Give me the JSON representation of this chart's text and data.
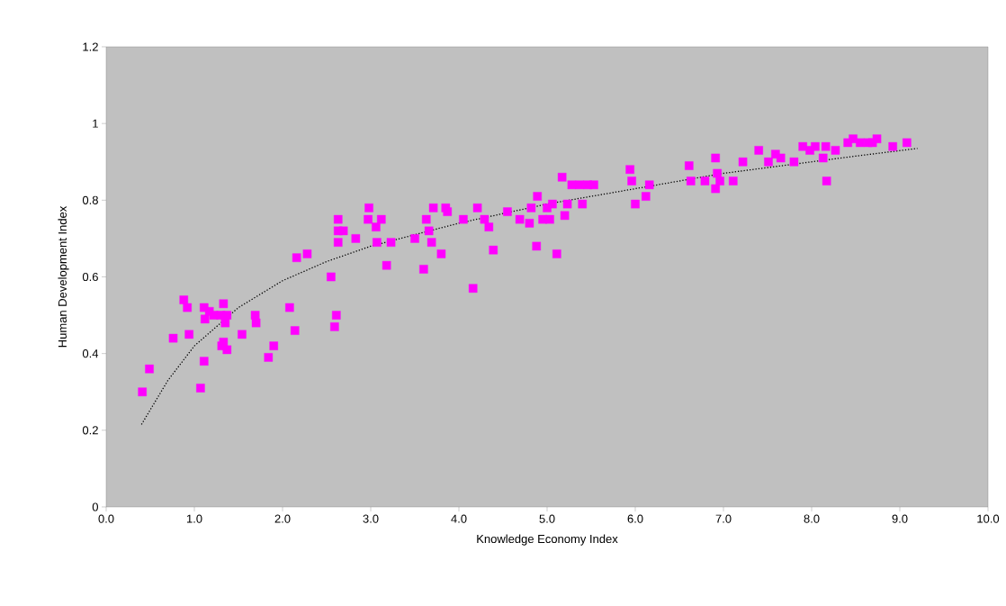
{
  "chart_data": {
    "type": "scatter",
    "xlabel": "Knowledge Economy Index",
    "ylabel": "Human Development Index",
    "xlim": [
      0,
      10
    ],
    "ylim": [
      0,
      1.2
    ],
    "xticks": [
      {
        "value": 0,
        "label": "0.0"
      },
      {
        "value": 1,
        "label": "1.0"
      },
      {
        "value": 2,
        "label": "2.0"
      },
      {
        "value": 3,
        "label": "3.0"
      },
      {
        "value": 4,
        "label": "4.0"
      },
      {
        "value": 5,
        "label": "5.0"
      },
      {
        "value": 6,
        "label": "6.0"
      },
      {
        "value": 7,
        "label": "7.0"
      },
      {
        "value": 8,
        "label": "8.0"
      },
      {
        "value": 9,
        "label": "9.0"
      },
      {
        "value": 10,
        "label": "10.0"
      }
    ],
    "yticks": [
      0,
      0.2,
      0.4,
      0.6,
      0.8,
      1,
      1.2
    ],
    "grid": false,
    "series": [
      {
        "marker": "square",
        "color": "#ff00ff",
        "x": [
          0.41,
          0.49,
          0.76,
          0.88,
          0.92,
          0.94,
          1.07,
          1.11,
          1.11,
          1.12,
          1.17,
          1.22,
          1.3,
          1.33,
          1.35,
          1.33,
          1.31,
          1.37,
          1.37,
          1.54,
          1.69,
          1.7,
          1.84,
          1.9,
          2.08,
          2.14,
          2.16,
          2.28,
          2.55,
          2.59,
          2.61,
          2.63,
          2.63,
          2.63,
          2.69,
          2.83,
          2.98,
          2.97,
          3.06,
          3.07,
          3.12,
          3.18,
          3.23,
          3.5,
          3.6,
          3.63,
          3.66,
          3.69,
          3.71,
          3.8,
          3.87,
          3.85,
          4.05,
          4.16,
          4.21,
          4.29,
          4.34,
          4.39,
          4.55,
          4.69,
          4.8,
          4.82,
          4.89,
          4.88,
          4.95,
          5.0,
          5.03,
          5.06,
          5.11,
          5.17,
          5.2,
          5.23,
          5.28,
          5.37,
          5.46,
          5.53,
          5.4,
          5.94,
          5.96,
          6.0,
          6.12,
          6.16,
          6.61,
          6.63,
          6.79,
          6.91,
          6.93,
          6.91,
          6.96,
          7.11,
          7.22,
          7.4,
          7.51,
          7.59,
          7.65,
          7.8,
          7.9,
          7.98,
          8.04,
          8.13,
          8.17,
          8.16,
          8.27,
          8.41,
          8.47,
          8.55,
          8.64,
          8.69,
          8.74,
          8.92,
          9.08
        ],
        "values": [
          0.3,
          0.36,
          0.44,
          0.54,
          0.52,
          0.45,
          0.31,
          0.38,
          0.52,
          0.49,
          0.51,
          0.5,
          0.5,
          0.53,
          0.48,
          0.43,
          0.42,
          0.41,
          0.5,
          0.45,
          0.5,
          0.48,
          0.39,
          0.42,
          0.52,
          0.46,
          0.65,
          0.66,
          0.6,
          0.47,
          0.5,
          0.75,
          0.72,
          0.69,
          0.72,
          0.7,
          0.78,
          0.75,
          0.73,
          0.69,
          0.75,
          0.63,
          0.69,
          0.7,
          0.62,
          0.75,
          0.72,
          0.69,
          0.78,
          0.66,
          0.77,
          0.78,
          0.75,
          0.57,
          0.78,
          0.75,
          0.73,
          0.67,
          0.77,
          0.75,
          0.74,
          0.78,
          0.81,
          0.68,
          0.75,
          0.78,
          0.75,
          0.79,
          0.66,
          0.86,
          0.76,
          0.79,
          0.84,
          0.84,
          0.84,
          0.84,
          0.79,
          0.88,
          0.85,
          0.79,
          0.81,
          0.84,
          0.89,
          0.85,
          0.85,
          0.91,
          0.87,
          0.83,
          0.85,
          0.85,
          0.9,
          0.93,
          0.9,
          0.92,
          0.91,
          0.9,
          0.94,
          0.93,
          0.94,
          0.91,
          0.85,
          0.94,
          0.93,
          0.95,
          0.96,
          0.95,
          0.95,
          0.95,
          0.96,
          0.94,
          0.95
        ]
      },
      {
        "type": "line",
        "marker": "none",
        "color": "#000000",
        "line_style": "dotted",
        "x": [
          0.4,
          0.7,
          1.0,
          1.5,
          2.0,
          2.5,
          3.0,
          3.5,
          4.0,
          4.5,
          5.0,
          5.5,
          6.0,
          6.5,
          7.0,
          7.5,
          8.0,
          8.5,
          9.2
        ],
        "values": [
          0.215,
          0.33,
          0.42,
          0.52,
          0.59,
          0.64,
          0.68,
          0.71,
          0.74,
          0.765,
          0.79,
          0.81,
          0.83,
          0.85,
          0.87,
          0.885,
          0.9,
          0.915,
          0.935
        ]
      }
    ]
  }
}
